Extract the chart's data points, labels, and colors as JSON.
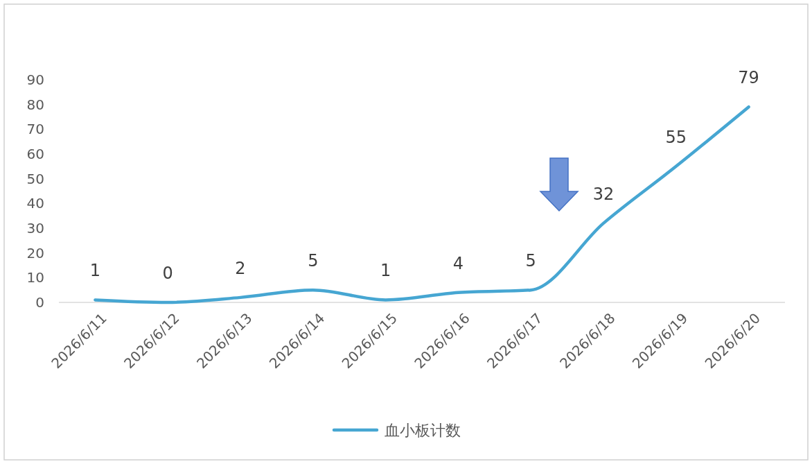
{
  "chart_data": {
    "type": "line",
    "categories": [
      "2026/6/11",
      "2026/6/12",
      "2026/6/13",
      "2026/6/14",
      "2026/6/15",
      "2026/6/16",
      "2026/6/17",
      "2026/6/18",
      "2026/6/19",
      "2026/6/20"
    ],
    "series": [
      {
        "name": "血小板计数",
        "color": "#46a6d2",
        "values": [
          1,
          0,
          2,
          5,
          1,
          4,
          5,
          32,
          55,
          79
        ]
      }
    ],
    "ylim": [
      0,
      90
    ],
    "yticks": [
      0,
      10,
      20,
      30,
      40,
      50,
      60,
      70,
      80,
      90
    ],
    "grid": false,
    "legend": "bottom",
    "data_labels": true,
    "marker": "none",
    "line_style": "solid"
  }
}
